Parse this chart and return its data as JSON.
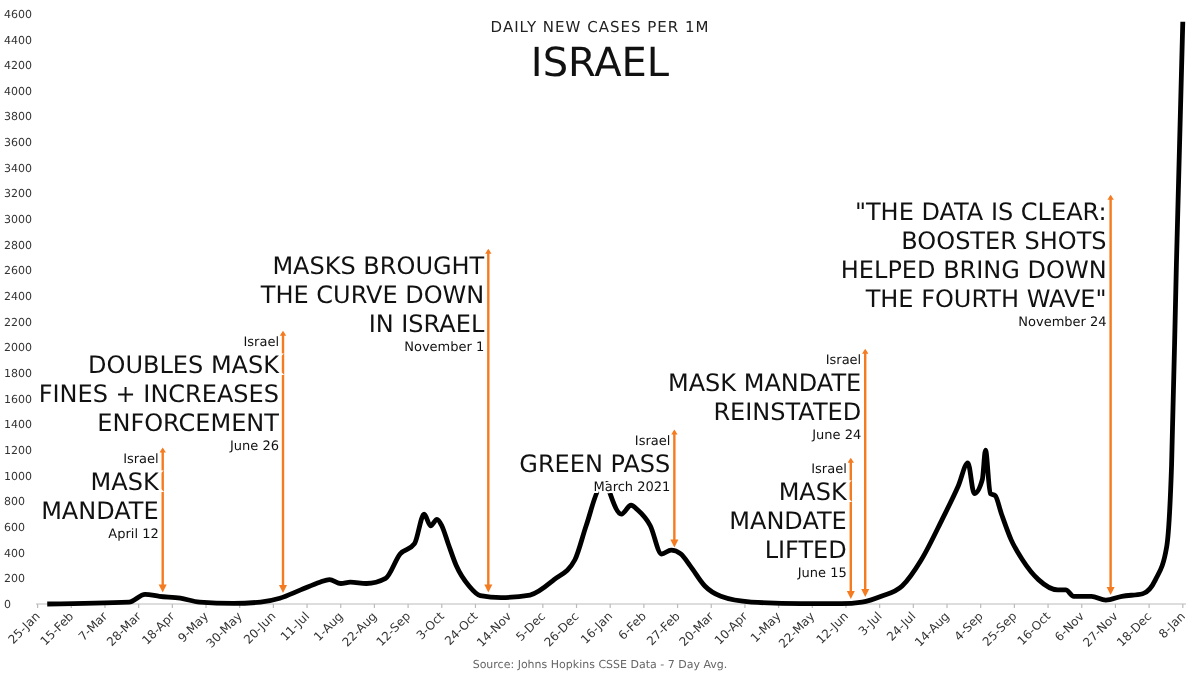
{
  "chart_data": {
    "type": "line",
    "title": "ISRAEL",
    "subtitle": "DAILY NEW CASES PER 1M",
    "x": [
      "2020-01-31",
      "2020-03-22",
      "2020-04-01",
      "2020-04-10",
      "2020-04-23",
      "2020-05-05",
      "2020-05-26",
      "2020-06-12",
      "2020-06-24",
      "2020-07-07",
      "2020-07-19",
      "2020-07-25",
      "2020-08-01",
      "2020-08-07",
      "2020-08-17",
      "2020-08-29",
      "2020-09-07",
      "2020-09-16",
      "2020-09-22",
      "2020-09-26",
      "2020-09-30",
      "2020-10-03",
      "2020-10-07",
      "2020-10-12",
      "2020-10-20",
      "2020-10-27",
      "2020-11-09",
      "2020-11-27",
      "2020-12-12",
      "2020-12-25",
      "2021-01-01",
      "2021-01-10",
      "2021-01-14",
      "2021-01-16",
      "2021-01-23",
      "2021-01-29",
      "2021-02-02",
      "2021-02-10",
      "2021-02-17",
      "2021-02-23",
      "2021-03-01",
      "2021-03-07",
      "2021-03-16",
      "2021-03-26",
      "2021-04-14",
      "2021-05-15",
      "2021-06-09",
      "2021-06-22",
      "2021-07-04",
      "2021-07-17",
      "2021-07-29",
      "2021-08-11",
      "2021-08-21",
      "2021-08-27",
      "2021-08-31",
      "2021-09-05",
      "2021-09-07",
      "2021-09-10",
      "2021-09-13",
      "2021-09-17",
      "2021-09-23",
      "2021-09-30",
      "2021-10-10",
      "2021-10-22",
      "2021-10-27",
      "2021-11-01",
      "2021-11-12",
      "2021-11-21",
      "2021-12-01",
      "2021-12-14",
      "2021-12-22",
      "2021-12-29",
      "2022-01-01",
      "2022-01-04",
      "2022-01-08"
    ],
    "series": [
      {
        "color": "#000000",
        "values": [
          0,
          15,
          75,
          60,
          45,
          15,
          5,
          15,
          45,
          110,
          170,
          190,
          160,
          170,
          160,
          200,
          390,
          470,
          700,
          610,
          660,
          610,
          470,
          300,
          140,
          65,
          50,
          70,
          190,
          345,
          610,
          920,
          940,
          860,
          700,
          770,
          735,
          610,
          390,
          420,
          390,
          295,
          140,
          60,
          15,
          3,
          3,
          15,
          60,
          140,
          345,
          660,
          920,
          1100,
          860,
          970,
          1200,
          860,
          845,
          700,
          500,
          345,
          190,
          110,
          110,
          60,
          60,
          30,
          60,
          80,
          190,
          450,
          1080,
          2640,
          4540
        ]
      }
    ],
    "xlim": [
      "2020-01-24",
      "2022-01-10"
    ],
    "xticks": [
      {
        "value": "2020-01-25",
        "label": "25-Jan"
      },
      {
        "value": "2020-02-15",
        "label": "15-Feb"
      },
      {
        "value": "2020-03-07",
        "label": "7-Mar"
      },
      {
        "value": "2020-03-28",
        "label": "28-Mar"
      },
      {
        "value": "2020-04-18",
        "label": "18-Apr"
      },
      {
        "value": "2020-05-09",
        "label": "9-May"
      },
      {
        "value": "2020-05-30",
        "label": "30-May"
      },
      {
        "value": "2020-06-20",
        "label": "20-Jun"
      },
      {
        "value": "2020-07-11",
        "label": "11-Jul"
      },
      {
        "value": "2020-08-01",
        "label": "1-Aug"
      },
      {
        "value": "2020-08-22",
        "label": "22-Aug"
      },
      {
        "value": "2020-09-12",
        "label": "12-Sep"
      },
      {
        "value": "2020-10-03",
        "label": "3-Oct"
      },
      {
        "value": "2020-10-24",
        "label": "24-Oct"
      },
      {
        "value": "2020-11-14",
        "label": "14-Nov"
      },
      {
        "value": "2020-12-05",
        "label": "5-Dec"
      },
      {
        "value": "2020-12-26",
        "label": "26-Dec"
      },
      {
        "value": "2021-01-16",
        "label": "16-Jan"
      },
      {
        "value": "2021-02-06",
        "label": "6-Feb"
      },
      {
        "value": "2021-02-27",
        "label": "27-Feb"
      },
      {
        "value": "2021-03-20",
        "label": "20-Mar"
      },
      {
        "value": "2021-04-10",
        "label": "10-Apr"
      },
      {
        "value": "2021-05-01",
        "label": "1-May"
      },
      {
        "value": "2021-05-22",
        "label": "22-May"
      },
      {
        "value": "2021-06-12",
        "label": "12-Jun"
      },
      {
        "value": "2021-07-03",
        "label": "3-Jul"
      },
      {
        "value": "2021-07-24",
        "label": "24-Jul"
      },
      {
        "value": "2021-08-14",
        "label": "14-Aug"
      },
      {
        "value": "2021-09-04",
        "label": "4-Sep"
      },
      {
        "value": "2021-09-25",
        "label": "25-Sep"
      },
      {
        "value": "2021-10-16",
        "label": "16-Oct"
      },
      {
        "value": "2021-11-06",
        "label": "6-Nov"
      },
      {
        "value": "2021-11-27",
        "label": "27-Nov"
      },
      {
        "value": "2021-12-18",
        "label": "18-Dec"
      },
      {
        "value": "2022-01-08",
        "label": "8-Jan"
      }
    ],
    "ylim": [
      0,
      4600
    ],
    "yticks": [
      0,
      200,
      400,
      600,
      800,
      1000,
      1200,
      1400,
      1600,
      1800,
      2000,
      2200,
      2400,
      2600,
      2800,
      3000,
      3200,
      3400,
      3600,
      3800,
      4000,
      4200,
      4400,
      4600
    ],
    "annotations": [
      {
        "text": "Israel\nMASK\nMANDATE\nApril 12",
        "x": "2020-04-12",
        "y": 1220
      },
      {
        "text": "Israel\nDOUBLES MASK\nFINES + INCREASES\nENFORCEMENT\nJune 26",
        "x": "2020-06-26",
        "y": 2130
      },
      {
        "text": "MASKS BROUGHT\nTHE CURVE DOWN\nIN ISRAEL\nNovember 1",
        "x": "2020-11-01",
        "y": 2770
      },
      {
        "text": "Israel\nGREEN PASS\nMarch 2021",
        "x": "2021-02-25",
        "y": 1360
      },
      {
        "text": "Israel\nMASK\nMANDATE\nLIFTED\nJune 15",
        "x": "2021-06-15",
        "y": 1140
      },
      {
        "text": "Israel\nMASK MANDATE\nREINSTATED\nJune 24",
        "x": "2021-06-24",
        "y": 1990
      },
      {
        "text": "\"THE DATA IS CLEAR:\nBOOSTER SHOTS\nHELPED BRING DOWN\nTHE FOURTH WAVE\"\nNovember 24",
        "x": "2021-11-24",
        "y": 3190
      },
      "Source: Johns Hopkins CSSE Data - 7 Day Avg."
    ]
  }
}
